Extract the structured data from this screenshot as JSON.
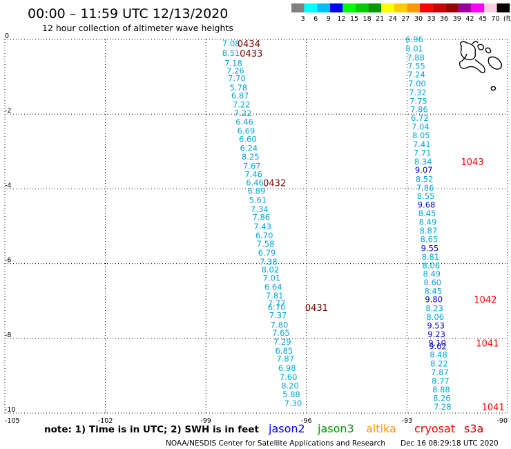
{
  "title": "00:00 – 11:59 UTC 12/13/2020",
  "subtitle": "12 hour collection of altimeter wave heights",
  "colorbar": {
    "labels": [
      "3",
      "6",
      "9",
      "12",
      "15",
      "18",
      "21",
      "24",
      "27",
      "30",
      "33",
      "36",
      "39",
      "42",
      "45",
      "70",
      "(ft)"
    ],
    "colors": [
      "#808080",
      "#00ffff",
      "#00bfff",
      "#0000ff",
      "#00ff00",
      "#00cc00",
      "#009900",
      "#ffff00",
      "#ffcc00",
      "#ff9900",
      "#ff0000",
      "#cc0000",
      "#990000",
      "#990099",
      "#ff00ff",
      "#ffcce6",
      "#000000"
    ]
  },
  "note": "note: 1) Time is in UTC; 2) SWH is in feet",
  "satellites": [
    {
      "name": "jason2",
      "color": "#0000ff"
    },
    {
      "name": "jason3",
      "color": "#009900"
    },
    {
      "name": "altika",
      "color": "#ff9900"
    },
    {
      "name": "cryosat",
      "color": "#ff0000"
    },
    {
      "name": "s3a",
      "color": "#cc0000"
    }
  ],
  "credit": "NOAA/NESDIS Center for Satellite Applications and Research",
  "timestamp": "Dec 16 08:29:18 UTC 2020",
  "chart_data": {
    "type": "scatter",
    "xlim": [
      -105,
      -90
    ],
    "ylim": [
      -10,
      0
    ],
    "x_ticks": [
      {
        "value": -105,
        "label": "-105"
      },
      {
        "value": -102,
        "label": "-102"
      },
      {
        "value": -99,
        "label": "-99"
      },
      {
        "value": -96,
        "label": "-96"
      },
      {
        "value": -93,
        "label": "-93"
      },
      {
        "value": -90,
        "label": "-90"
      }
    ],
    "y_ticks": [
      {
        "value": 0,
        "label": "0"
      },
      {
        "value": -2,
        "label": "-2"
      },
      {
        "value": -4,
        "label": "-4"
      },
      {
        "value": -6,
        "label": "-6"
      },
      {
        "value": -8,
        "label": "-8"
      },
      {
        "value": -10,
        "label": "-10"
      }
    ],
    "grid": true,
    "tracks": [
      {
        "color": "#00a6dc",
        "points": [
          {
            "lon": -98.25,
            "lat": -0.11,
            "v": "7.08"
          },
          {
            "lon": -98.25,
            "lat": -0.37,
            "v": "8.51"
          },
          {
            "lon": -98.18,
            "lat": -0.64,
            "v": "7.18"
          },
          {
            "lon": -98.12,
            "lat": -0.84,
            "v": "7.26"
          },
          {
            "lon": -98.08,
            "lat": -1.04,
            "v": "7.70"
          },
          {
            "lon": -98.03,
            "lat": -1.29,
            "v": "5.78"
          },
          {
            "lon": -97.98,
            "lat": -1.51,
            "v": "6.87"
          },
          {
            "lon": -97.94,
            "lat": -1.75,
            "v": "7.22"
          },
          {
            "lon": -97.9,
            "lat": -1.98,
            "v": "7.22"
          },
          {
            "lon": -97.85,
            "lat": -2.21,
            "v": "6.46"
          },
          {
            "lon": -97.8,
            "lat": -2.45,
            "v": "6.69"
          },
          {
            "lon": -97.75,
            "lat": -2.67,
            "v": "6.60"
          },
          {
            "lon": -97.72,
            "lat": -2.91,
            "v": "6.24"
          },
          {
            "lon": -97.67,
            "lat": -3.14,
            "v": "8.25"
          },
          {
            "lon": -97.63,
            "lat": -3.39,
            "v": "7.67"
          },
          {
            "lon": -97.58,
            "lat": -3.61,
            "v": "7.46"
          },
          {
            "lon": -97.54,
            "lat": -3.84,
            "v": "6.46"
          },
          {
            "lon": -97.49,
            "lat": -4.06,
            "v": "6.89"
          },
          {
            "lon": -97.45,
            "lat": -4.3,
            "v": "5.61"
          },
          {
            "lon": -97.4,
            "lat": -4.55,
            "v": "7.34"
          },
          {
            "lon": -97.35,
            "lat": -4.76,
            "v": "7.86"
          },
          {
            "lon": -97.31,
            "lat": -5.01,
            "v": "7.43"
          },
          {
            "lon": -97.26,
            "lat": -5.25,
            "v": "6.70"
          },
          {
            "lon": -97.22,
            "lat": -5.47,
            "v": "7.58"
          },
          {
            "lon": -97.18,
            "lat": -5.71,
            "v": "6.79"
          },
          {
            "lon": -97.13,
            "lat": -5.95,
            "v": "7.38"
          },
          {
            "lon": -97.08,
            "lat": -6.16,
            "v": "8.02"
          },
          {
            "lon": -97.04,
            "lat": -6.39,
            "v": "7.01"
          },
          {
            "lon": -96.99,
            "lat": -6.63,
            "v": "6.64"
          },
          {
            "lon": -96.95,
            "lat": -6.86,
            "v": "7.81"
          },
          {
            "lon": -96.89,
            "lat": -7.07,
            "v": "7.77"
          },
          {
            "lon": -96.89,
            "lat": -7.17,
            "v": "6.70"
          },
          {
            "lon": -96.85,
            "lat": -7.38,
            "v": "7.37"
          },
          {
            "lon": -96.81,
            "lat": -7.64,
            "v": "7.80"
          },
          {
            "lon": -96.76,
            "lat": -7.86,
            "v": "7.65"
          },
          {
            "lon": -96.72,
            "lat": -8.1,
            "v": "7.29"
          },
          {
            "lon": -96.67,
            "lat": -8.34,
            "v": "6.85"
          },
          {
            "lon": -96.63,
            "lat": -8.55,
            "v": "7.87"
          },
          {
            "lon": -96.58,
            "lat": -8.8,
            "v": "6.98"
          },
          {
            "lon": -96.54,
            "lat": -9.04,
            "v": "7.60"
          },
          {
            "lon": -96.49,
            "lat": -9.27,
            "v": "8.20"
          },
          {
            "lon": -96.45,
            "lat": -9.5,
            "v": "5.88"
          },
          {
            "lon": -96.4,
            "lat": -9.74,
            "v": "7.30"
          }
        ]
      },
      {
        "color": "#00a6dc",
        "points": [
          {
            "lon": -92.78,
            "lat": 0.0,
            "v": "6.96"
          },
          {
            "lon": -92.78,
            "lat": -0.25,
            "v": "8.01"
          },
          {
            "lon": -92.74,
            "lat": -0.49,
            "v": "7.88"
          },
          {
            "lon": -92.72,
            "lat": -0.71,
            "v": "7.55"
          },
          {
            "lon": -92.72,
            "lat": -0.94,
            "v": "7.24"
          },
          {
            "lon": -92.7,
            "lat": -1.18,
            "v": "7.00"
          },
          {
            "lon": -92.68,
            "lat": -1.42,
            "v": "7.32"
          },
          {
            "lon": -92.66,
            "lat": -1.65,
            "v": "7.75"
          },
          {
            "lon": -92.64,
            "lat": -1.88,
            "v": "7.86"
          },
          {
            "lon": -92.62,
            "lat": -2.11,
            "v": "6.72"
          },
          {
            "lon": -92.6,
            "lat": -2.34,
            "v": "7.04"
          },
          {
            "lon": -92.58,
            "lat": -2.57,
            "v": "8.05"
          },
          {
            "lon": -92.56,
            "lat": -2.81,
            "v": "7.41"
          },
          {
            "lon": -92.54,
            "lat": -3.04,
            "v": "7.71"
          },
          {
            "lon": -92.52,
            "lat": -3.27,
            "v": "8.34"
          },
          {
            "lon": -92.5,
            "lat": -3.49,
            "v": "9.07",
            "color": "#0000cc"
          },
          {
            "lon": -92.48,
            "lat": -3.74,
            "v": "8.52"
          },
          {
            "lon": -92.46,
            "lat": -3.97,
            "v": "7.86"
          },
          {
            "lon": -92.44,
            "lat": -4.2,
            "v": "8.55"
          },
          {
            "lon": -92.42,
            "lat": -4.43,
            "v": "9.68",
            "color": "#0000cc"
          },
          {
            "lon": -92.4,
            "lat": -4.66,
            "v": "8.45"
          },
          {
            "lon": -92.38,
            "lat": -4.89,
            "v": "8.49"
          },
          {
            "lon": -92.36,
            "lat": -5.12,
            "v": "8.87"
          },
          {
            "lon": -92.34,
            "lat": -5.35,
            "v": "8.65"
          },
          {
            "lon": -92.32,
            "lat": -5.59,
            "v": "9.55",
            "color": "#0000cc"
          },
          {
            "lon": -92.3,
            "lat": -5.82,
            "v": "8.81"
          },
          {
            "lon": -92.28,
            "lat": -6.05,
            "v": "8.06"
          },
          {
            "lon": -92.26,
            "lat": -6.28,
            "v": "8.49"
          },
          {
            "lon": -92.24,
            "lat": -6.51,
            "v": "8.60"
          },
          {
            "lon": -92.22,
            "lat": -6.74,
            "v": "8.45"
          },
          {
            "lon": -92.2,
            "lat": -6.96,
            "v": "9.80",
            "color": "#0000cc"
          },
          {
            "lon": -92.18,
            "lat": -7.2,
            "v": "8.23"
          },
          {
            "lon": -92.16,
            "lat": -7.43,
            "v": "8.06"
          },
          {
            "lon": -92.14,
            "lat": -7.66,
            "v": "9.53",
            "color": "#0000cc"
          },
          {
            "lon": -92.12,
            "lat": -7.89,
            "v": "9.23",
            "color": "#0000cc"
          },
          {
            "lon": -92.1,
            "lat": -8.12,
            "v": "9.10",
            "color": "#0000cc"
          },
          {
            "lon": -92.08,
            "lat": -8.22,
            "v": "9.02",
            "color": "#0000cc"
          },
          {
            "lon": -92.06,
            "lat": -8.44,
            "v": "8.48"
          },
          {
            "lon": -92.04,
            "lat": -8.68,
            "v": "8.22"
          },
          {
            "lon": -92.02,
            "lat": -8.91,
            "v": "7.87"
          },
          {
            "lon": -92.0,
            "lat": -9.14,
            "v": "8.77"
          },
          {
            "lon": -91.98,
            "lat": -9.37,
            "v": "8.88"
          },
          {
            "lon": -91.96,
            "lat": -9.6,
            "v": "8.26"
          },
          {
            "lon": -91.94,
            "lat": -9.83,
            "v": "7.28"
          }
        ]
      }
    ],
    "time_labels": [
      {
        "lon": -97.72,
        "lat": -0.11,
        "text": "0434",
        "color": "#800000"
      },
      {
        "lon": -97.65,
        "lat": -0.37,
        "text": "0433",
        "color": "#800000"
      },
      {
        "lon": -96.95,
        "lat": -3.84,
        "text": "0432",
        "color": "#800000"
      },
      {
        "lon": -95.7,
        "lat": -7.17,
        "text": "0431",
        "color": "#800000"
      },
      {
        "lon": -91.05,
        "lat": -3.27,
        "text": "1043",
        "color": "#ff0000"
      },
      {
        "lon": -90.66,
        "lat": -6.96,
        "text": "1042",
        "color": "#ff0000"
      },
      {
        "lon": -90.6,
        "lat": -8.12,
        "text": "1041",
        "color": "#ff0000"
      },
      {
        "lon": -90.43,
        "lat": -9.83,
        "text": "1041",
        "color": "#ff0000"
      }
    ]
  }
}
